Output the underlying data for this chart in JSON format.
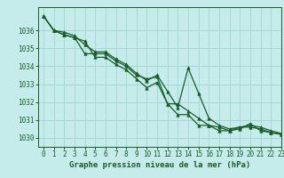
{
  "title": "Graphe pression niveau de la mer (hPa)",
  "background_color": "#c5ecea",
  "grid_color": "#a8d8d5",
  "line_color": "#1a5c28",
  "xlim": [
    -0.5,
    23
  ],
  "ylim": [
    1029.5,
    1037.3
  ],
  "yticks": [
    1030,
    1031,
    1032,
    1033,
    1034,
    1035,
    1036
  ],
  "xticks": [
    0,
    1,
    2,
    3,
    4,
    5,
    6,
    7,
    8,
    9,
    10,
    11,
    12,
    13,
    14,
    15,
    16,
    17,
    18,
    19,
    20,
    21,
    22,
    23
  ],
  "series": [
    [
      1036.8,
      1036.0,
      1035.9,
      1035.7,
      1035.2,
      1034.8,
      1034.8,
      1034.4,
      1034.1,
      1033.6,
      1033.2,
      1033.5,
      1032.6,
      1031.7,
      1033.9,
      1032.5,
      1031.1,
      1030.7,
      1030.5,
      1030.6,
      1030.7,
      1030.6,
      1030.4,
      1030.25
    ],
    [
      1036.8,
      1036.0,
      1035.75,
      1035.6,
      1034.7,
      1034.7,
      1034.7,
      1034.3,
      1034.0,
      1033.5,
      1033.3,
      1033.4,
      1031.9,
      1031.9,
      1031.5,
      1031.1,
      1030.7,
      1030.6,
      1030.4,
      1030.6,
      1030.6,
      1030.5,
      1030.3,
      1030.2
    ],
    [
      1036.8,
      1036.0,
      1035.75,
      1035.6,
      1035.4,
      1034.5,
      1034.5,
      1034.1,
      1033.8,
      1033.3,
      1032.8,
      1033.1,
      1031.9,
      1031.3,
      1031.3,
      1030.7,
      1030.7,
      1030.4,
      1030.4,
      1030.5,
      1030.8,
      1030.4,
      1030.3,
      1030.2
    ]
  ]
}
